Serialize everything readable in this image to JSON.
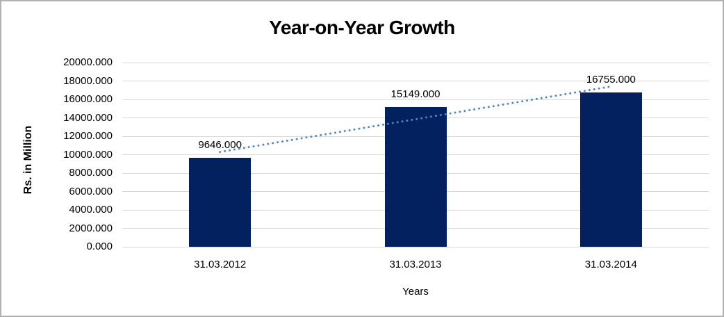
{
  "chart_data": {
    "type": "bar",
    "title": "Year-on-Year Growth",
    "xlabel": "Years",
    "ylabel": "Rs. in Million",
    "categories": [
      "31.03.2012",
      "31.03.2013",
      "31.03.2014"
    ],
    "values": [
      9646,
      15149,
      16755
    ],
    "value_labels": [
      "9646.000",
      "15149.000",
      "16755.000"
    ],
    "ylim": [
      0,
      20000
    ],
    "ytick_step": 2000,
    "ytick_labels": [
      "0.000",
      "2000.000",
      "4000.000",
      "6000.000",
      "8000.000",
      "10000.000",
      "12000.000",
      "14000.000",
      "16000.000",
      "18000.000",
      "20000.000"
    ],
    "grid": "horizontal",
    "legend": "none",
    "trendline": {
      "type": "linear",
      "style": "dotted"
    }
  },
  "colors": {
    "bar": "#03215e",
    "trendline": "#4f87c7",
    "gridline": "#d9d9d9",
    "text": "#000000",
    "frame_border": "#b1b1b1",
    "background": "#ffffff"
  }
}
